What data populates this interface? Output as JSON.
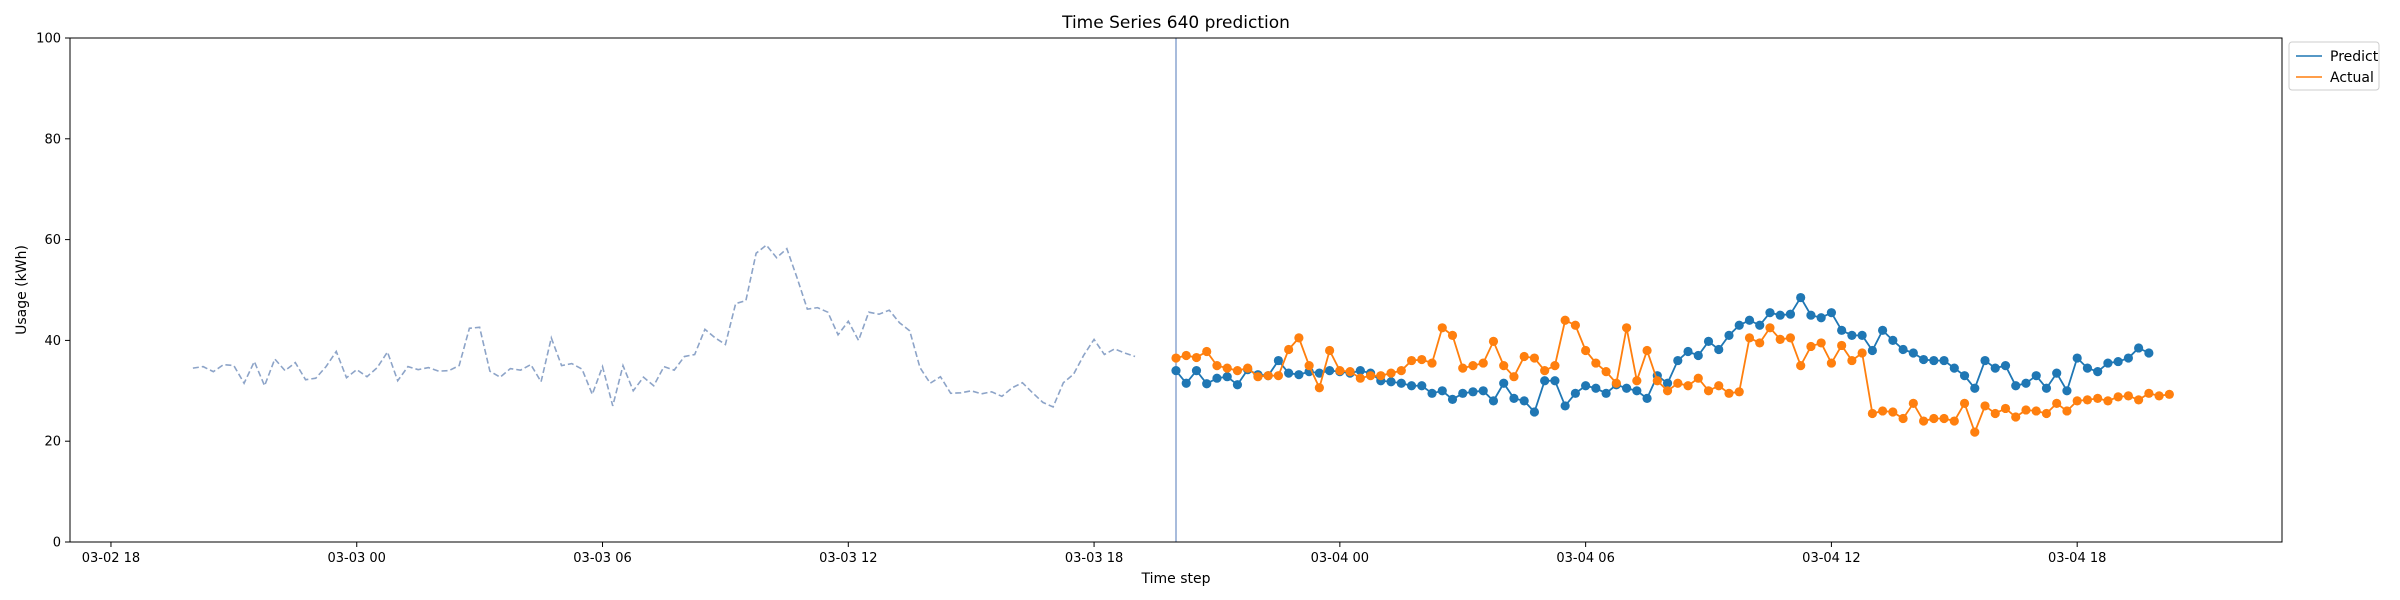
{
  "chart_data": {
    "type": "line",
    "title": "Time Series 640 prediction",
    "xlabel": "Time step",
    "ylabel": "Usage (kWh)",
    "ylim": [
      0,
      100
    ],
    "yticks": [
      "0",
      "20",
      "40",
      "60",
      "80",
      "100"
    ],
    "x_range": [
      "2026-03-02 17:00",
      "2026-03-04 23:00"
    ],
    "xticks": [
      {
        "label": "03-02 18",
        "t": "2026-03-02 18:00"
      },
      {
        "label": "03-03 00",
        "t": "2026-03-03 00:00"
      },
      {
        "label": "03-03 06",
        "t": "2026-03-03 06:00"
      },
      {
        "label": "03-03 12",
        "t": "2026-03-03 12:00"
      },
      {
        "label": "03-03 18",
        "t": "2026-03-03 18:00"
      },
      {
        "label": "03-04 00",
        "t": "2026-03-04 00:00"
      },
      {
        "label": "03-04 06",
        "t": "2026-03-04 06:00"
      },
      {
        "label": "03-04 12",
        "t": "2026-03-04 12:00"
      },
      {
        "label": "03-04 18",
        "t": "2026-03-04 18:00"
      }
    ],
    "split_time": "2026-03-03 20:00",
    "history": {
      "start": "2026-03-02 20:00",
      "step_minutes": 15,
      "style": "dashed",
      "color": "#8da4c8",
      "values": [
        34.5,
        34.8,
        33.8,
        35.2,
        35.0,
        31.5,
        35.8,
        31.0,
        36.3,
        34.0,
        35.6,
        32.2,
        32.5,
        34.8,
        37.8,
        32.6,
        34.2,
        32.8,
        34.6,
        37.7,
        32.0,
        34.8,
        34.2,
        34.6,
        33.9,
        34.0,
        35.0,
        42.4,
        42.6,
        33.9,
        32.7,
        34.4,
        34.1,
        35.2,
        31.8,
        40.5,
        35.0,
        35.4,
        34.3,
        29.3,
        34.8,
        27.0,
        35.0,
        30.0,
        32.7,
        31.0,
        34.8,
        34.1,
        36.8,
        37.2,
        42.2,
        40.5,
        39.2,
        47.3,
        47.9,
        57.3,
        58.9,
        56.4,
        58.2,
        52.4,
        46.2,
        46.5,
        45.6,
        41.1,
        43.8,
        40.0,
        45.6,
        45.2,
        46.0,
        43.5,
        41.9,
        34.6,
        31.5,
        32.8,
        29.5,
        29.6,
        30.0,
        29.4,
        29.8,
        28.9,
        30.6,
        31.6,
        29.6,
        27.7,
        26.8,
        31.6,
        33.3,
        37.1,
        40.2,
        37.2,
        38.3,
        37.5,
        36.8
      ]
    },
    "forecast": {
      "start": "2026-03-03 20:00",
      "step_minutes": 15,
      "series": [
        {
          "name": "Predict",
          "color": "#1f77b4",
          "values": [
            34.0,
            31.5,
            34.0,
            31.4,
            32.5,
            32.8,
            31.2,
            34.2,
            33.2,
            33.0,
            36.0,
            33.5,
            33.2,
            33.8,
            33.5,
            34.0,
            33.8,
            33.5,
            34.0,
            33.5,
            32.0,
            31.8,
            31.5,
            31.0,
            31.0,
            29.5,
            30.0,
            28.3,
            29.5,
            29.8,
            30.0,
            28.0,
            31.5,
            28.5,
            28.0,
            25.8,
            32.0,
            32.0,
            27.0,
            29.5,
            31.0,
            30.5,
            29.5,
            31.2,
            30.5,
            30.0,
            28.5,
            33.0,
            31.5,
            36.0,
            37.8,
            37.0,
            39.8,
            38.2,
            41.0,
            43.0,
            44.0,
            43.0,
            45.5,
            45.0,
            45.2,
            48.5,
            45.0,
            44.5,
            45.5,
            42.0,
            41.0,
            41.0,
            38.0,
            42.0,
            40.0,
            38.2,
            37.5,
            36.2,
            36.0,
            36.0,
            34.5,
            33.0,
            30.5,
            36.0,
            34.5,
            35.0,
            31.0,
            31.5,
            33.0,
            30.5,
            33.5,
            30.0,
            36.5,
            34.5,
            33.8,
            35.5,
            35.8,
            36.5,
            38.5,
            37.5
          ]
        },
        {
          "name": "Actual",
          "color": "#ff7f0e",
          "values": [
            36.5,
            37.0,
            36.6,
            37.8,
            35.0,
            34.5,
            34.0,
            34.5,
            32.8,
            33.0,
            33.0,
            38.2,
            40.5,
            35.0,
            30.6,
            38.0,
            34.0,
            33.8,
            32.5,
            33.0,
            33.0,
            33.5,
            34.0,
            36.0,
            36.2,
            35.5,
            42.5,
            41.0,
            34.5,
            35.0,
            35.5,
            39.8,
            35.0,
            32.8,
            36.8,
            36.5,
            34.0,
            35.0,
            44.0,
            43.0,
            38.0,
            35.5,
            33.8,
            31.5,
            42.5,
            32.0,
            38.0,
            32.0,
            30.0,
            31.5,
            31.0,
            32.5,
            30.0,
            31.0,
            29.5,
            29.8,
            40.5,
            39.5,
            42.5,
            40.2,
            40.5,
            35.0,
            38.8,
            39.5,
            35.5,
            39.0,
            36.0,
            37.5,
            25.5,
            26.0,
            25.8,
            24.5,
            27.5,
            24.0,
            24.5,
            24.5,
            24.0,
            27.5,
            21.8,
            27.0,
            25.5,
            26.5,
            24.8,
            26.2,
            26.0,
            25.5,
            27.5,
            26.0,
            28.0,
            28.2,
            28.5,
            28.0,
            28.8,
            29.0,
            28.2,
            29.5,
            29.0,
            29.3
          ]
        }
      ]
    },
    "legend": {
      "position": "upper-right-outside",
      "entries": [
        "Predict",
        "Actual"
      ]
    },
    "grid": false
  }
}
